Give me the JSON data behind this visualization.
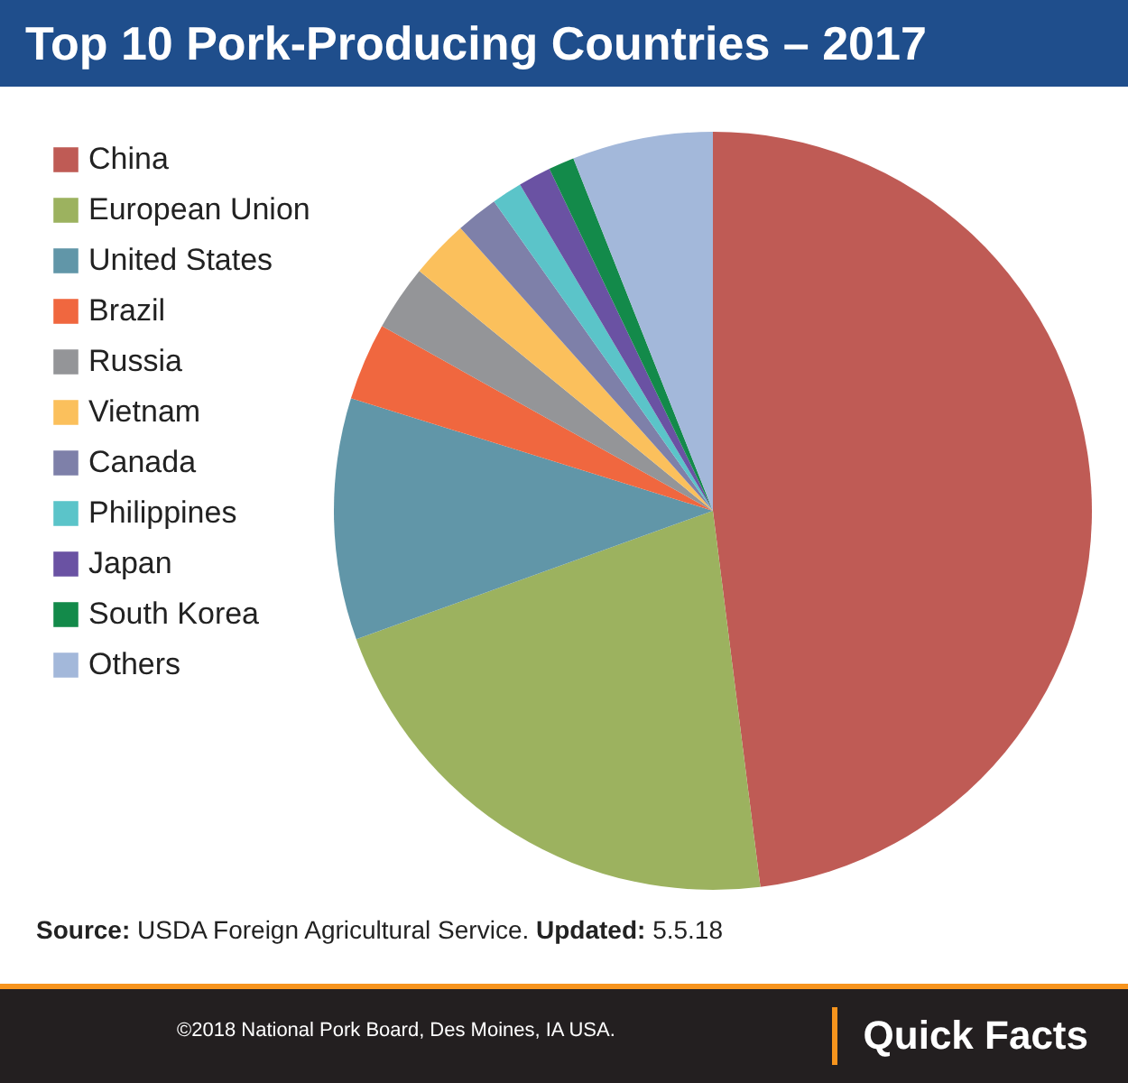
{
  "chart_data": {
    "type": "pie",
    "title": "Top 10 Pork-Producing Countries – 2017",
    "categories": [
      "China",
      "European Union",
      "United States",
      "Brazil",
      "Russia",
      "Vietnam",
      "Canada",
      "Philippines",
      "Japan",
      "South Korea",
      "Others"
    ],
    "values": [
      48.0,
      21.5,
      10.3,
      3.3,
      2.8,
      2.5,
      1.8,
      1.3,
      1.4,
      1.1,
      6.0
    ],
    "colors": [
      "#bf5b55",
      "#9cb25f",
      "#6196a8",
      "#f0673f",
      "#949598",
      "#fbc05c",
      "#7e80a9",
      "#5bc4c9",
      "#6a52a3",
      "#138a4a",
      "#a3b8da"
    ],
    "legend": "top left",
    "annotations": [
      "Source: USDA Foreign Agricultural Service. Updated: 5.5.18",
      "©2018 National Pork Board, Des Moines, IA USA.",
      "Quick Facts"
    ]
  }
}
